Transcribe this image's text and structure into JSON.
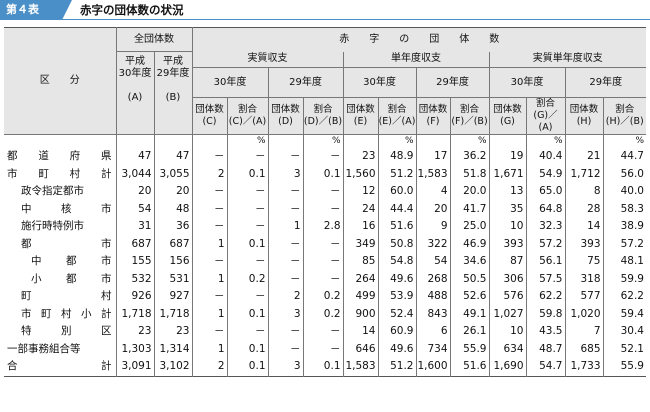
{
  "title": {
    "badge": "第４表",
    "text": "赤字の団体数の状況"
  },
  "header": {
    "kubun": "区　　分",
    "zen": "全団体数",
    "h30": "平成\n30年度",
    "h29": "平成\n29年度",
    "colA": "(A)",
    "colB": "(B)",
    "akaji": "赤　　字　　の　　団　　体　　数",
    "g1": "実質収支",
    "g2": "単年度収支",
    "g3": "実質単年度収支",
    "y30": "30年度",
    "y29": "29年度",
    "sub": [
      "団体数\n(C)",
      "割合\n(C)／(A)",
      "団体数\n(D)",
      "割合\n(D)／(B)",
      "団体数\n(E)",
      "割合\n(E)／(A)",
      "団体数\n(F)",
      "割合\n(F)／(B)",
      "団体数\n(G)",
      "割合\n(G)／(A)",
      "団体数\n(H)",
      "割合\n(H)／(B)"
    ],
    "pct": "%"
  },
  "rows": [
    {
      "label": "都道府県",
      "style": "dist",
      "v": [
        "47",
        "47",
        "－",
        "－",
        "－",
        "－",
        "23",
        "48.9",
        "17",
        "36.2",
        "19",
        "40.4",
        "21",
        "44.7"
      ]
    },
    {
      "label": "市町村計",
      "style": "dist",
      "v": [
        "3,044",
        "3,055",
        "2",
        "0.1",
        "3",
        "0.1",
        "1,560",
        "51.2",
        "1,583",
        "51.8",
        "1,671",
        "54.9",
        "1,712",
        "56.0"
      ]
    },
    {
      "label": "政令指定都市",
      "style": "l2",
      "v": [
        "20",
        "20",
        "－",
        "－",
        "－",
        "－",
        "12",
        "60.0",
        "4",
        "20.0",
        "13",
        "65.0",
        "8",
        "40.0"
      ]
    },
    {
      "label": "中核市",
      "style": "dist2",
      "v": [
        "54",
        "48",
        "－",
        "－",
        "－",
        "－",
        "24",
        "44.4",
        "20",
        "41.7",
        "35",
        "64.8",
        "28",
        "58.3"
      ]
    },
    {
      "label": "施行時特例市",
      "style": "l2",
      "v": [
        "31",
        "36",
        "－",
        "－",
        "1",
        "2.8",
        "16",
        "51.6",
        "9",
        "25.0",
        "10",
        "32.3",
        "14",
        "38.9"
      ]
    },
    {
      "label": "都市",
      "style": "dist2",
      "v": [
        "687",
        "687",
        "1",
        "0.1",
        "－",
        "－",
        "349",
        "50.8",
        "322",
        "46.9",
        "393",
        "57.2",
        "393",
        "57.2"
      ]
    },
    {
      "label": "中都市",
      "style": "dist3",
      "v": [
        "155",
        "156",
        "－",
        "－",
        "－",
        "－",
        "85",
        "54.8",
        "54",
        "34.6",
        "87",
        "56.1",
        "75",
        "48.1"
      ]
    },
    {
      "label": "小都市",
      "style": "dist3",
      "v": [
        "532",
        "531",
        "1",
        "0.2",
        "－",
        "－",
        "264",
        "49.6",
        "268",
        "50.5",
        "306",
        "57.5",
        "318",
        "59.9"
      ]
    },
    {
      "label": "町村",
      "style": "dist2",
      "v": [
        "926",
        "927",
        "－",
        "－",
        "2",
        "0.2",
        "499",
        "53.9",
        "488",
        "52.6",
        "576",
        "62.2",
        "577",
        "62.2"
      ]
    },
    {
      "label": "市町村小計",
      "style": "dist2",
      "v": [
        "1,718",
        "1,718",
        "1",
        "0.1",
        "3",
        "0.2",
        "900",
        "52.4",
        "843",
        "49.1",
        "1,027",
        "59.8",
        "1,020",
        "59.4"
      ]
    },
    {
      "label": "特別区",
      "style": "dist2",
      "v": [
        "23",
        "23",
        "－",
        "－",
        "－",
        "－",
        "14",
        "60.9",
        "6",
        "26.1",
        "10",
        "43.5",
        "7",
        "30.4"
      ]
    },
    {
      "label": "一部事務組合等",
      "style": "l1",
      "v": [
        "1,303",
        "1,314",
        "1",
        "0.1",
        "－",
        "－",
        "646",
        "49.6",
        "734",
        "55.9",
        "634",
        "48.7",
        "685",
        "52.1"
      ]
    },
    {
      "label": "合計",
      "style": "dist",
      "v": [
        "3,091",
        "3,102",
        "2",
        "0.1",
        "3",
        "0.1",
        "1,583",
        "51.2",
        "1,600",
        "51.6",
        "1,690",
        "54.7",
        "1,733",
        "55.9"
      ]
    }
  ]
}
